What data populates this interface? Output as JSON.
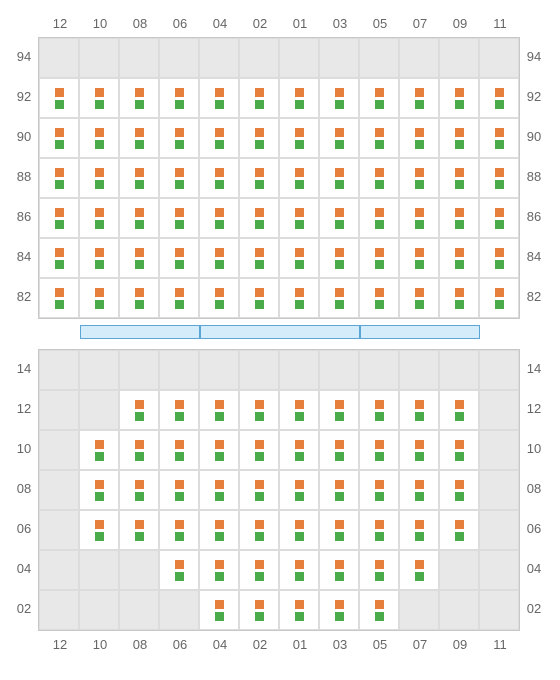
{
  "colors": {
    "top_dot": "#e67e3c",
    "bottom_dot": "#4aab4a",
    "cell_active_bg": "#ffffff",
    "cell_inactive_bg": "#e8e8e8",
    "grid_border": "#c8c8c8",
    "cell_border": "#dcdcdc",
    "label_color": "#666666",
    "stage_fill": "#d5ecfb",
    "stage_border": "#5aa7d6"
  },
  "layout": {
    "cell_size": 40,
    "dot_size": 9,
    "side_label_width": 28,
    "stage_segment_widths": [
      120,
      160,
      120
    ],
    "stage_height": 14
  },
  "columns": [
    "12",
    "10",
    "08",
    "06",
    "04",
    "02",
    "01",
    "03",
    "05",
    "07",
    "09",
    "11"
  ],
  "upper": {
    "row_labels": [
      "94",
      "92",
      "90",
      "88",
      "86",
      "84",
      "82"
    ],
    "cells": [
      [
        0,
        0,
        0,
        0,
        0,
        0,
        0,
        0,
        0,
        0,
        0,
        0
      ],
      [
        1,
        1,
        1,
        1,
        1,
        1,
        1,
        1,
        1,
        1,
        1,
        1
      ],
      [
        1,
        1,
        1,
        1,
        1,
        1,
        1,
        1,
        1,
        1,
        1,
        1
      ],
      [
        1,
        1,
        1,
        1,
        1,
        1,
        1,
        1,
        1,
        1,
        1,
        1
      ],
      [
        1,
        1,
        1,
        1,
        1,
        1,
        1,
        1,
        1,
        1,
        1,
        1
      ],
      [
        1,
        1,
        1,
        1,
        1,
        1,
        1,
        1,
        1,
        1,
        1,
        1
      ],
      [
        1,
        1,
        1,
        1,
        1,
        1,
        1,
        1,
        1,
        1,
        1,
        1
      ]
    ]
  },
  "lower": {
    "row_labels": [
      "14",
      "12",
      "10",
      "08",
      "06",
      "04",
      "02"
    ],
    "cells": [
      [
        0,
        0,
        0,
        0,
        0,
        0,
        0,
        0,
        0,
        0,
        0,
        0
      ],
      [
        0,
        0,
        1,
        1,
        1,
        1,
        1,
        1,
        1,
        1,
        1,
        0
      ],
      [
        0,
        1,
        1,
        1,
        1,
        1,
        1,
        1,
        1,
        1,
        1,
        0
      ],
      [
        0,
        1,
        1,
        1,
        1,
        1,
        1,
        1,
        1,
        1,
        1,
        0
      ],
      [
        0,
        1,
        1,
        1,
        1,
        1,
        1,
        1,
        1,
        1,
        1,
        0
      ],
      [
        0,
        0,
        0,
        1,
        1,
        1,
        1,
        1,
        1,
        1,
        0,
        0
      ],
      [
        0,
        0,
        0,
        0,
        1,
        1,
        1,
        1,
        1,
        0,
        0,
        0
      ]
    ]
  }
}
